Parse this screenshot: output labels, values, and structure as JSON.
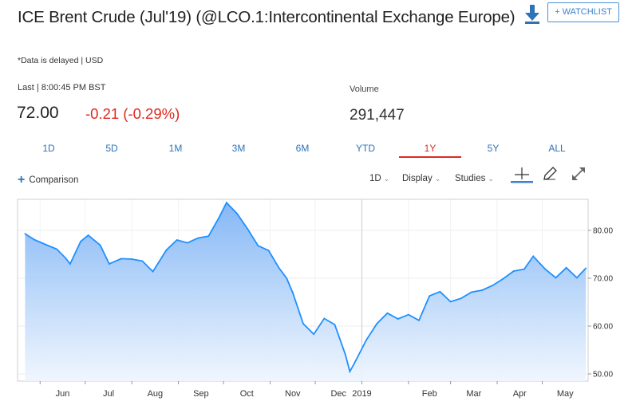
{
  "header": {
    "title": "ICE Brent Crude (Jul'19) (@LCO.1:Intercontinental Exchange Europe)",
    "delay_note": "*Data is delayed | USD",
    "watchlist_label": "+ WATCHLIST",
    "download_icon": "download-icon"
  },
  "quote": {
    "last_label": "Last | 8:00:45 PM BST",
    "last_price": "72.00",
    "change": "-0.21 (-0.29%)",
    "volume_label": "Volume",
    "volume_value": "291,447",
    "change_color": "#e0291f"
  },
  "range_tabs": [
    "1D",
    "5D",
    "1M",
    "3M",
    "6M",
    "YTD",
    "1Y",
    "5Y",
    "ALL"
  ],
  "active_tab": "1Y",
  "toolbar": {
    "comparison_label": "Comparison",
    "interval_label": "1D",
    "display_label": "Display",
    "studies_label": "Studies",
    "icons": [
      "crosshair-icon",
      "pencil-icon",
      "expand-icon"
    ]
  },
  "chart_data": {
    "type": "area",
    "y_ticks": [
      "80.00",
      "70.00",
      "60.00",
      "50.00"
    ],
    "ylim": [
      48.5,
      86.5
    ],
    "x_labels": [
      "Jun",
      "Jul",
      "Aug",
      "Sep",
      "Oct",
      "Nov",
      "Dec",
      "2019",
      "Feb",
      "Mar",
      "Apr",
      "May"
    ],
    "x": [
      "2018-05-22",
      "2018-05-28",
      "2018-06-05",
      "2018-06-12",
      "2018-06-18",
      "2018-06-21",
      "2018-06-28",
      "2018-07-03",
      "2018-07-11",
      "2018-07-17",
      "2018-07-25",
      "2018-08-01",
      "2018-08-08",
      "2018-08-15",
      "2018-08-24",
      "2018-08-31",
      "2018-09-07",
      "2018-09-14",
      "2018-09-21",
      "2018-09-28",
      "2018-10-03",
      "2018-10-10",
      "2018-10-17",
      "2018-10-24",
      "2018-10-31",
      "2018-11-07",
      "2018-11-12",
      "2018-11-16",
      "2018-11-23",
      "2018-11-30",
      "2018-12-07",
      "2018-12-14",
      "2018-12-21",
      "2018-12-24",
      "2018-12-27",
      "2019-01-04",
      "2019-01-11",
      "2019-01-18",
      "2019-01-25",
      "2019-02-01",
      "2019-02-08",
      "2019-02-15",
      "2019-02-22",
      "2019-03-01",
      "2019-03-08",
      "2019-03-15",
      "2019-03-22",
      "2019-03-29",
      "2019-04-05",
      "2019-04-12",
      "2019-04-19",
      "2019-04-25",
      "2019-05-03",
      "2019-05-10",
      "2019-05-17",
      "2019-05-24",
      "2019-05-30"
    ],
    "y": [
      79.3,
      78.1,
      77.0,
      76.1,
      74.2,
      73.0,
      77.7,
      79.0,
      76.9,
      73.0,
      74.1,
      74.0,
      73.6,
      71.4,
      75.9,
      78.0,
      77.4,
      78.4,
      78.8,
      82.7,
      85.8,
      83.5,
      80.3,
      76.8,
      75.8,
      72.1,
      70.0,
      67.0,
      60.5,
      58.3,
      61.6,
      60.3,
      54.1,
      50.5,
      52.2,
      57.1,
      60.5,
      62.7,
      61.5,
      62.4,
      61.2,
      66.3,
      67.2,
      65.1,
      65.8,
      67.1,
      67.5,
      68.5,
      69.9,
      71.5,
      71.9,
      74.6,
      71.9,
      70.1,
      72.2,
      70.1,
      72.1
    ]
  }
}
